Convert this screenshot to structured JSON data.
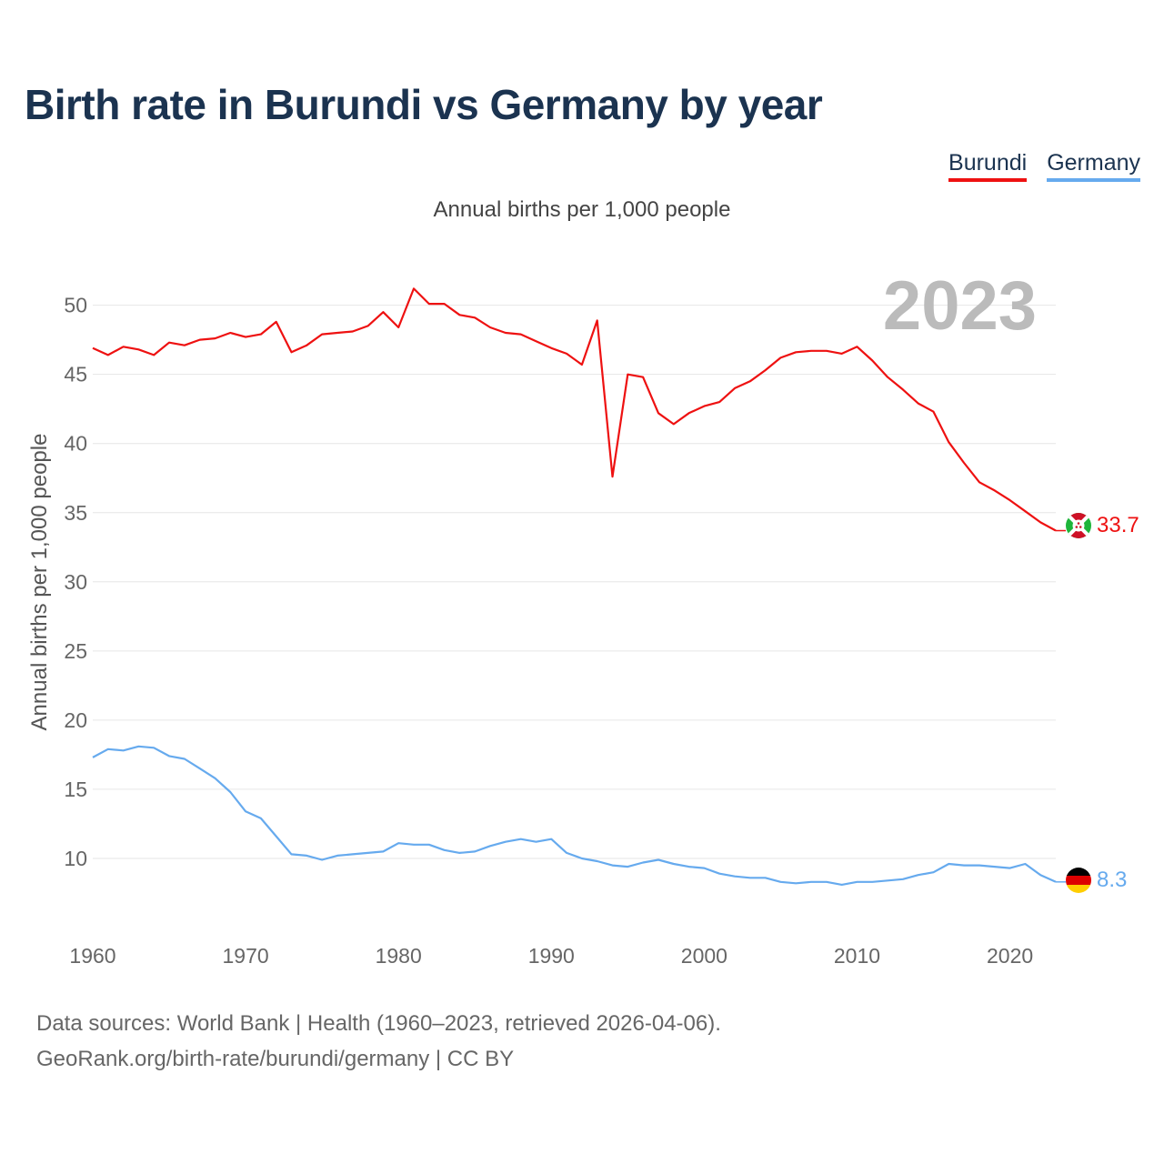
{
  "title": "Birth rate in Burundi vs Germany by year",
  "subtitle": "Annual births per 1,000 people",
  "legend": [
    {
      "label": "Burundi",
      "color": "#ee1111"
    },
    {
      "label": "Germany",
      "color": "#66aaee"
    }
  ],
  "source": {
    "line1": "Data sources: World Bank | Health (1960–2023, retrieved 2026-04-06).",
    "line2": "GeoRank.org/birth-rate/burundi/germany | CC BY"
  },
  "chart_data": {
    "type": "line",
    "title": "Birth rate in Burundi vs Germany by year",
    "ylabel": "Annual births per 1,000 people",
    "xlabel": "",
    "year_label": "2023",
    "xlim": [
      1960,
      2023
    ],
    "ylim": [
      5,
      53
    ],
    "yticks": [
      10,
      15,
      20,
      25,
      30,
      35,
      40,
      45,
      50
    ],
    "xticks": [
      1960,
      1970,
      1980,
      1990,
      2000,
      2010,
      2020
    ],
    "x": [
      1960,
      1961,
      1962,
      1963,
      1964,
      1965,
      1966,
      1967,
      1968,
      1969,
      1970,
      1971,
      1972,
      1973,
      1974,
      1975,
      1976,
      1977,
      1978,
      1979,
      1980,
      1981,
      1982,
      1983,
      1984,
      1985,
      1986,
      1987,
      1988,
      1989,
      1990,
      1991,
      1992,
      1993,
      1994,
      1995,
      1996,
      1997,
      1998,
      1999,
      2000,
      2001,
      2002,
      2003,
      2004,
      2005,
      2006,
      2007,
      2008,
      2009,
      2010,
      2011,
      2012,
      2013,
      2014,
      2015,
      2016,
      2017,
      2018,
      2019,
      2020,
      2021,
      2022,
      2023
    ],
    "series": [
      {
        "name": "Burundi",
        "color": "#ee1111",
        "end_label": "33.7",
        "flag": "burundi-flag-icon",
        "values": [
          46.9,
          46.4,
          47.0,
          46.8,
          46.4,
          47.3,
          47.1,
          47.5,
          47.6,
          48.0,
          47.7,
          47.9,
          48.8,
          46.6,
          47.1,
          47.9,
          48.0,
          48.1,
          48.5,
          49.5,
          48.4,
          51.2,
          50.1,
          50.1,
          49.3,
          49.1,
          48.4,
          48.0,
          47.9,
          47.4,
          46.9,
          46.5,
          45.7,
          48.9,
          37.6,
          45.0,
          44.8,
          42.2,
          41.4,
          42.2,
          42.7,
          43.0,
          44.0,
          44.5,
          45.3,
          46.2,
          46.6,
          46.7,
          46.7,
          46.5,
          47.0,
          46.0,
          44.8,
          43.9,
          42.9,
          42.3,
          40.1,
          38.6,
          37.2,
          36.6,
          35.9,
          35.1,
          34.3,
          33.7
        ]
      },
      {
        "name": "Germany",
        "color": "#66aaee",
        "end_label": "8.3",
        "flag": "germany-flag-icon",
        "values": [
          17.3,
          17.9,
          17.8,
          18.1,
          18.0,
          17.4,
          17.2,
          16.5,
          15.8,
          14.8,
          13.4,
          12.9,
          11.6,
          10.3,
          10.2,
          9.9,
          10.2,
          10.3,
          10.4,
          10.5,
          11.1,
          11.0,
          11.0,
          10.6,
          10.4,
          10.5,
          10.9,
          11.2,
          11.4,
          11.2,
          11.4,
          10.4,
          10.0,
          9.8,
          9.5,
          9.4,
          9.7,
          9.9,
          9.6,
          9.4,
          9.3,
          8.9,
          8.7,
          8.6,
          8.6,
          8.3,
          8.2,
          8.3,
          8.3,
          8.1,
          8.3,
          8.3,
          8.4,
          8.5,
          8.8,
          9.0,
          9.6,
          9.5,
          9.5,
          9.4,
          9.3,
          9.6,
          8.8,
          8.3
        ]
      }
    ]
  }
}
